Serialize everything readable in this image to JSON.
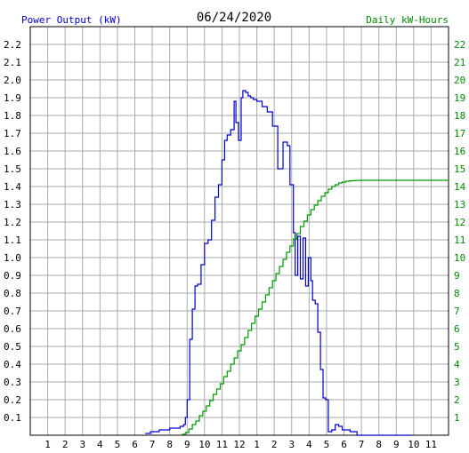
{
  "chart_data": {
    "type": "line",
    "title": "06/24/2020",
    "left_axis_label": "Power Output (kW)",
    "right_axis_label": "Daily kW-Hours",
    "x_ticks": [
      "1",
      "2",
      "3",
      "4",
      "5",
      "6",
      "7",
      "8",
      "9",
      "10",
      "11",
      "12",
      "1",
      "2",
      "3",
      "4",
      "5",
      "6",
      "7",
      "8",
      "9",
      "10",
      "11"
    ],
    "left_ticks": [
      "0.1",
      "0.2",
      "0.3",
      "0.4",
      "0.5",
      "0.6",
      "0.7",
      "0.8",
      "0.9",
      "1.0",
      "1.1",
      "1.2",
      "1.3",
      "1.4",
      "1.5",
      "1.6",
      "1.7",
      "1.8",
      "1.9",
      "2.0",
      "2.1",
      "2.2"
    ],
    "right_ticks": [
      "1",
      "2",
      "3",
      "4",
      "5",
      "6",
      "7",
      "8",
      "9",
      "10",
      "11",
      "12",
      "13",
      "14",
      "15",
      "16",
      "17",
      "18",
      "19",
      "20",
      "21",
      "22"
    ],
    "xlim": [
      0,
      24
    ],
    "ylim_left": [
      0,
      2.3
    ],
    "ylim_right": [
      0,
      23
    ],
    "grid": true,
    "colors": {
      "title": "#000000",
      "left_axis_label": "#0000cc",
      "right_axis_label": "#008800",
      "power_series": "#0000cc",
      "energy_series": "#009900",
      "grid": "#aaaaaa"
    },
    "series": [
      {
        "axis": "left",
        "step": true,
        "x": [
          6.6,
          6.9,
          7.1,
          7.4,
          7.7,
          8.0,
          8.3,
          8.6,
          8.8,
          8.9,
          9.0,
          9.15,
          9.3,
          9.45,
          9.6,
          9.8,
          10.0,
          10.2,
          10.4,
          10.6,
          10.8,
          11.0,
          11.15,
          11.3,
          11.5,
          11.7,
          11.8,
          11.95,
          12.1,
          12.2,
          12.35,
          12.5,
          12.65,
          12.8,
          13.0,
          13.3,
          13.6,
          13.9,
          14.2,
          14.5,
          14.75,
          14.9,
          15.1,
          15.2,
          15.35,
          15.5,
          15.65,
          15.8,
          15.95,
          16.1,
          16.2,
          16.35,
          16.5,
          16.65,
          16.8,
          16.95,
          17.1,
          17.3,
          17.5,
          17.7,
          17.9,
          18.05,
          18.2,
          18.35,
          18.55,
          18.75,
          18.9,
          19.05,
          19.3,
          19.5,
          19.65,
          19.8,
          19.95,
          20.1,
          20.3,
          20.5,
          20.7,
          20.9,
          21.1,
          21.3,
          21.5,
          21.7,
          21.85
        ],
        "y": [
          0.01,
          0.02,
          0.02,
          0.03,
          0.03,
          0.04,
          0.04,
          0.05,
          0.06,
          0.1,
          0.2,
          0.54,
          0.71,
          0.84,
          0.85,
          0.96,
          1.08,
          1.1,
          1.21,
          1.34,
          1.41,
          1.55,
          1.66,
          1.69,
          1.72,
          1.88,
          1.76,
          1.66,
          1.9,
          1.94,
          1.93,
          1.91,
          1.9,
          1.89,
          1.88,
          1.85,
          1.82,
          1.74,
          1.5,
          1.65,
          1.63,
          1.41,
          1.14,
          0.9,
          1.12,
          0.88,
          1.11,
          0.84,
          1.0,
          0.87,
          0.76,
          0.74,
          0.58,
          0.37,
          0.21,
          0.2,
          0.02,
          0.03,
          0.06,
          0.05,
          0.03,
          0.03,
          0.03,
          0.02,
          0.02,
          0.0,
          0.0,
          0.0,
          0.0,
          0.0,
          0.0,
          0.0,
          0.0,
          0.0,
          0.0,
          0.0,
          0.0,
          0.0,
          0.0,
          0.0,
          0.0,
          0.0,
          0.0
        ]
      },
      {
        "axis": "right",
        "step": true,
        "x": [
          8.7,
          8.9,
          9.1,
          9.3,
          9.5,
          9.7,
          9.9,
          10.1,
          10.3,
          10.5,
          10.7,
          10.9,
          11.1,
          11.3,
          11.5,
          11.7,
          11.9,
          12.1,
          12.3,
          12.5,
          12.7,
          12.9,
          13.1,
          13.3,
          13.5,
          13.7,
          13.9,
          14.1,
          14.3,
          14.5,
          14.7,
          14.9,
          15.1,
          15.3,
          15.5,
          15.7,
          15.9,
          16.1,
          16.3,
          16.5,
          16.7,
          16.9,
          17.1,
          17.3,
          17.5,
          17.7,
          17.9,
          18.1,
          18.3,
          18.5,
          18.7,
          18.9,
          19.1,
          19.3,
          19.5,
          19.7,
          19.9,
          20.1,
          24.0
        ],
        "y": [
          0.05,
          0.15,
          0.35,
          0.6,
          0.8,
          1.1,
          1.35,
          1.65,
          1.95,
          2.3,
          2.6,
          2.9,
          3.3,
          3.6,
          4.0,
          4.35,
          4.75,
          5.1,
          5.5,
          5.9,
          6.3,
          6.7,
          7.1,
          7.5,
          7.9,
          8.3,
          8.7,
          9.1,
          9.5,
          9.9,
          10.3,
          10.65,
          11.05,
          11.35,
          11.75,
          12.05,
          12.4,
          12.7,
          12.95,
          13.2,
          13.45,
          13.65,
          13.85,
          14.0,
          14.1,
          14.2,
          14.25,
          14.3,
          14.32,
          14.33,
          14.34,
          14.35,
          14.35,
          14.35,
          14.35,
          14.35,
          14.35,
          14.35,
          14.35
        ]
      }
    ]
  }
}
